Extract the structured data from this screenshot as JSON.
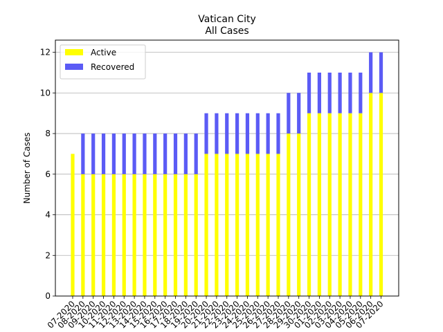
{
  "chart_data": {
    "type": "bar",
    "stacked": true,
    "title": "Vatican City",
    "subtitle": "All Cases",
    "xlabel": "",
    "ylabel": "Number of Cases",
    "ylim": [
      0,
      12.6
    ],
    "yticks": [
      0,
      2,
      4,
      6,
      8,
      10,
      12
    ],
    "grid": "horizontal",
    "legend_position": "top-left",
    "categories": [
      "07-2020",
      "08-2020",
      "09-2020",
      "10-2020",
      "11-2020",
      "12-2020",
      "13-2020",
      "14-2020",
      "15-2020",
      "16-2020",
      "17-2020",
      "18-2020",
      "19-2020",
      "20-2020",
      "21-2020",
      "22-2020",
      "23-2020",
      "24-2020",
      "25-2020",
      "26-2020",
      "27-2020",
      "28-2020",
      "29-2020",
      "30-2020",
      "01-2020",
      "02-2020",
      "03-2020",
      "04-2020",
      "05-2020",
      "06-2020",
      "07-2020"
    ],
    "series": [
      {
        "name": "Active",
        "color": "#ffff00",
        "values": [
          7,
          6,
          6,
          6,
          6,
          6,
          6,
          6,
          6,
          6,
          6,
          6,
          6,
          7,
          7,
          7,
          7,
          7,
          7,
          7,
          7,
          8,
          8,
          9,
          9,
          9,
          9,
          9,
          9,
          10,
          10
        ]
      },
      {
        "name": "Recovered",
        "color": "#5b5bf5",
        "values": [
          0,
          2,
          2,
          2,
          2,
          2,
          2,
          2,
          2,
          2,
          2,
          2,
          2,
          2,
          2,
          2,
          2,
          2,
          2,
          2,
          2,
          2,
          2,
          2,
          2,
          2,
          2,
          2,
          2,
          2,
          2
        ]
      }
    ]
  }
}
